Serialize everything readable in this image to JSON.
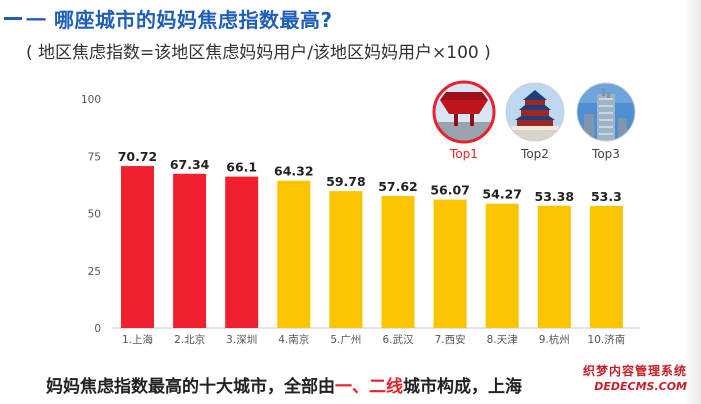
{
  "header": {
    "title": "一 哪座城市的妈妈焦虑指数最高?",
    "subtitle": "( 地区焦虑指数=该地区焦虑妈妈用户/该地区妈妈用户×100 )"
  },
  "chart_data": {
    "type": "bar",
    "categories": [
      "1.上海",
      "2.北京",
      "3.深圳",
      "4.南京",
      "5.广州",
      "6.武汉",
      "7.西安",
      "8.天津",
      "9.杭州",
      "10.济南"
    ],
    "values": [
      70.72,
      67.34,
      66.1,
      64.32,
      59.78,
      57.62,
      56.07,
      54.27,
      53.38,
      53.3
    ],
    "value_labels": [
      "70.72",
      "67.34",
      "66.1",
      "64.32",
      "59.78",
      "57.62",
      "56.07",
      "54.27",
      "53.38",
      "53.3"
    ],
    "ylim": [
      0,
      100
    ],
    "yticks": [
      0,
      25,
      50,
      75,
      100
    ],
    "bar_colors": [
      "#f0202e",
      "#f0202e",
      "#f0202e",
      "#fbc400",
      "#fbc400",
      "#fbc400",
      "#fbc400",
      "#fbc400",
      "#fbc400",
      "#fbc400"
    ],
    "grid": false,
    "top_badges": [
      "Top1",
      "Top2",
      "Top3"
    ],
    "top_badge_icons": [
      "pavilion-icon",
      "temple-of-heaven-icon",
      "skyscraper-icon"
    ]
  },
  "footer": {
    "text_before": "妈妈焦虑指数最高的十大城市，全部由",
    "highlight": "一、二线",
    "text_after": "城市构成，上海"
  },
  "watermark": {
    "line1": "织梦内容管理系统",
    "line2": "DEDECMS.COM"
  },
  "colors": {
    "accent_blue": "#1f5fb8",
    "red": "#f0202e",
    "yellow": "#fbc400"
  }
}
